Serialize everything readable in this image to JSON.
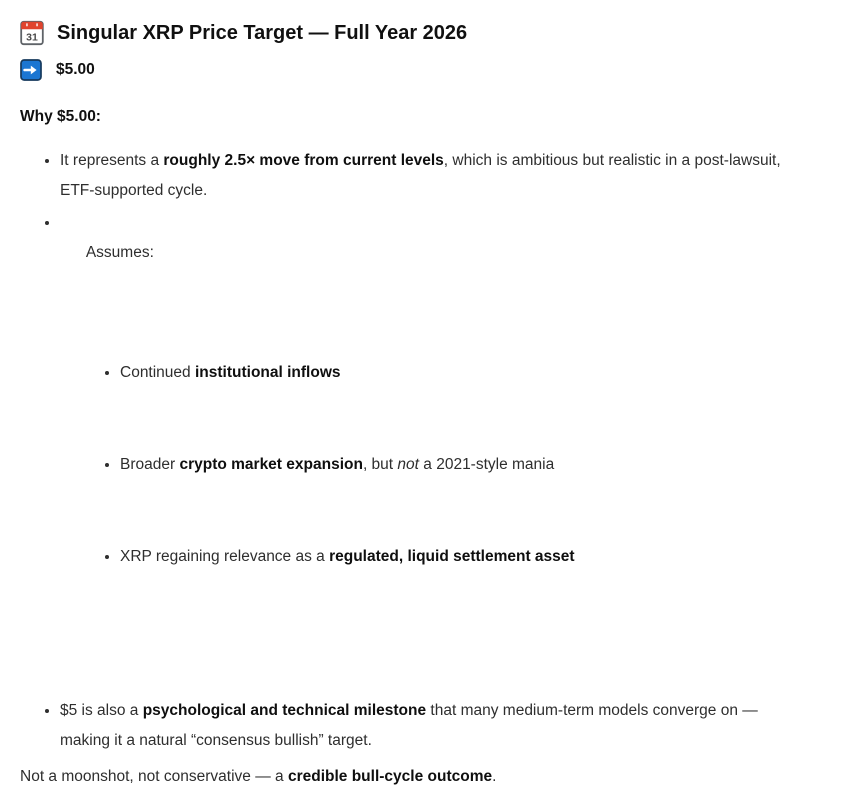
{
  "page": {
    "background": "#ffffff",
    "text_color": "#2e2e2e"
  },
  "colors": {
    "calendar_red": "#e0442e",
    "calendar_border": "#5f6368",
    "calendar_day_color": "#4a4a4a",
    "arrow_blue": "#1b76d2",
    "arrow_border": "#16395c"
  },
  "header": {
    "icon": "calendar-icon",
    "calendar_day": "31",
    "title": "Singular XRP Price Target — Full Year 2026"
  },
  "target": {
    "icon": "right-arrow-icon",
    "value": "$5.00"
  },
  "why_heading": "Why $5.00:",
  "bullets": [
    {
      "segments": [
        {
          "t": "It represents a "
        },
        {
          "t": "roughly 2.5× move from current levels",
          "b": true
        },
        {
          "t": ", which is ambitious but realistic in a post-lawsuit,\nETF-supported cycle."
        }
      ]
    },
    {
      "segments": [
        {
          "t": "Assumes:"
        }
      ],
      "children": [
        {
          "segments": [
            {
              "t": "Continued "
            },
            {
              "t": "institutional inflows",
              "b": true
            }
          ]
        },
        {
          "segments": [
            {
              "t": "Broader "
            },
            {
              "t": "crypto market expansion",
              "b": true
            },
            {
              "t": ", but "
            },
            {
              "t": "not",
              "i": true
            },
            {
              "t": " a 2021-style mania"
            }
          ]
        },
        {
          "segments": [
            {
              "t": "XRP regaining relevance as a "
            },
            {
              "t": "regulated, liquid settlement asset",
              "b": true
            }
          ]
        }
      ]
    },
    {
      "segments": [
        {
          "t": "$5 is also a "
        },
        {
          "t": "psychological and technical milestone",
          "b": true
        },
        {
          "t": " that many medium-term models converge on —\nmaking it a natural “consensus bullish” target."
        }
      ]
    }
  ],
  "footer": {
    "segments": [
      {
        "t": "Not a moonshot, not conservative — a "
      },
      {
        "t": "credible bull-cycle outcome",
        "b": true
      },
      {
        "t": "."
      }
    ]
  }
}
